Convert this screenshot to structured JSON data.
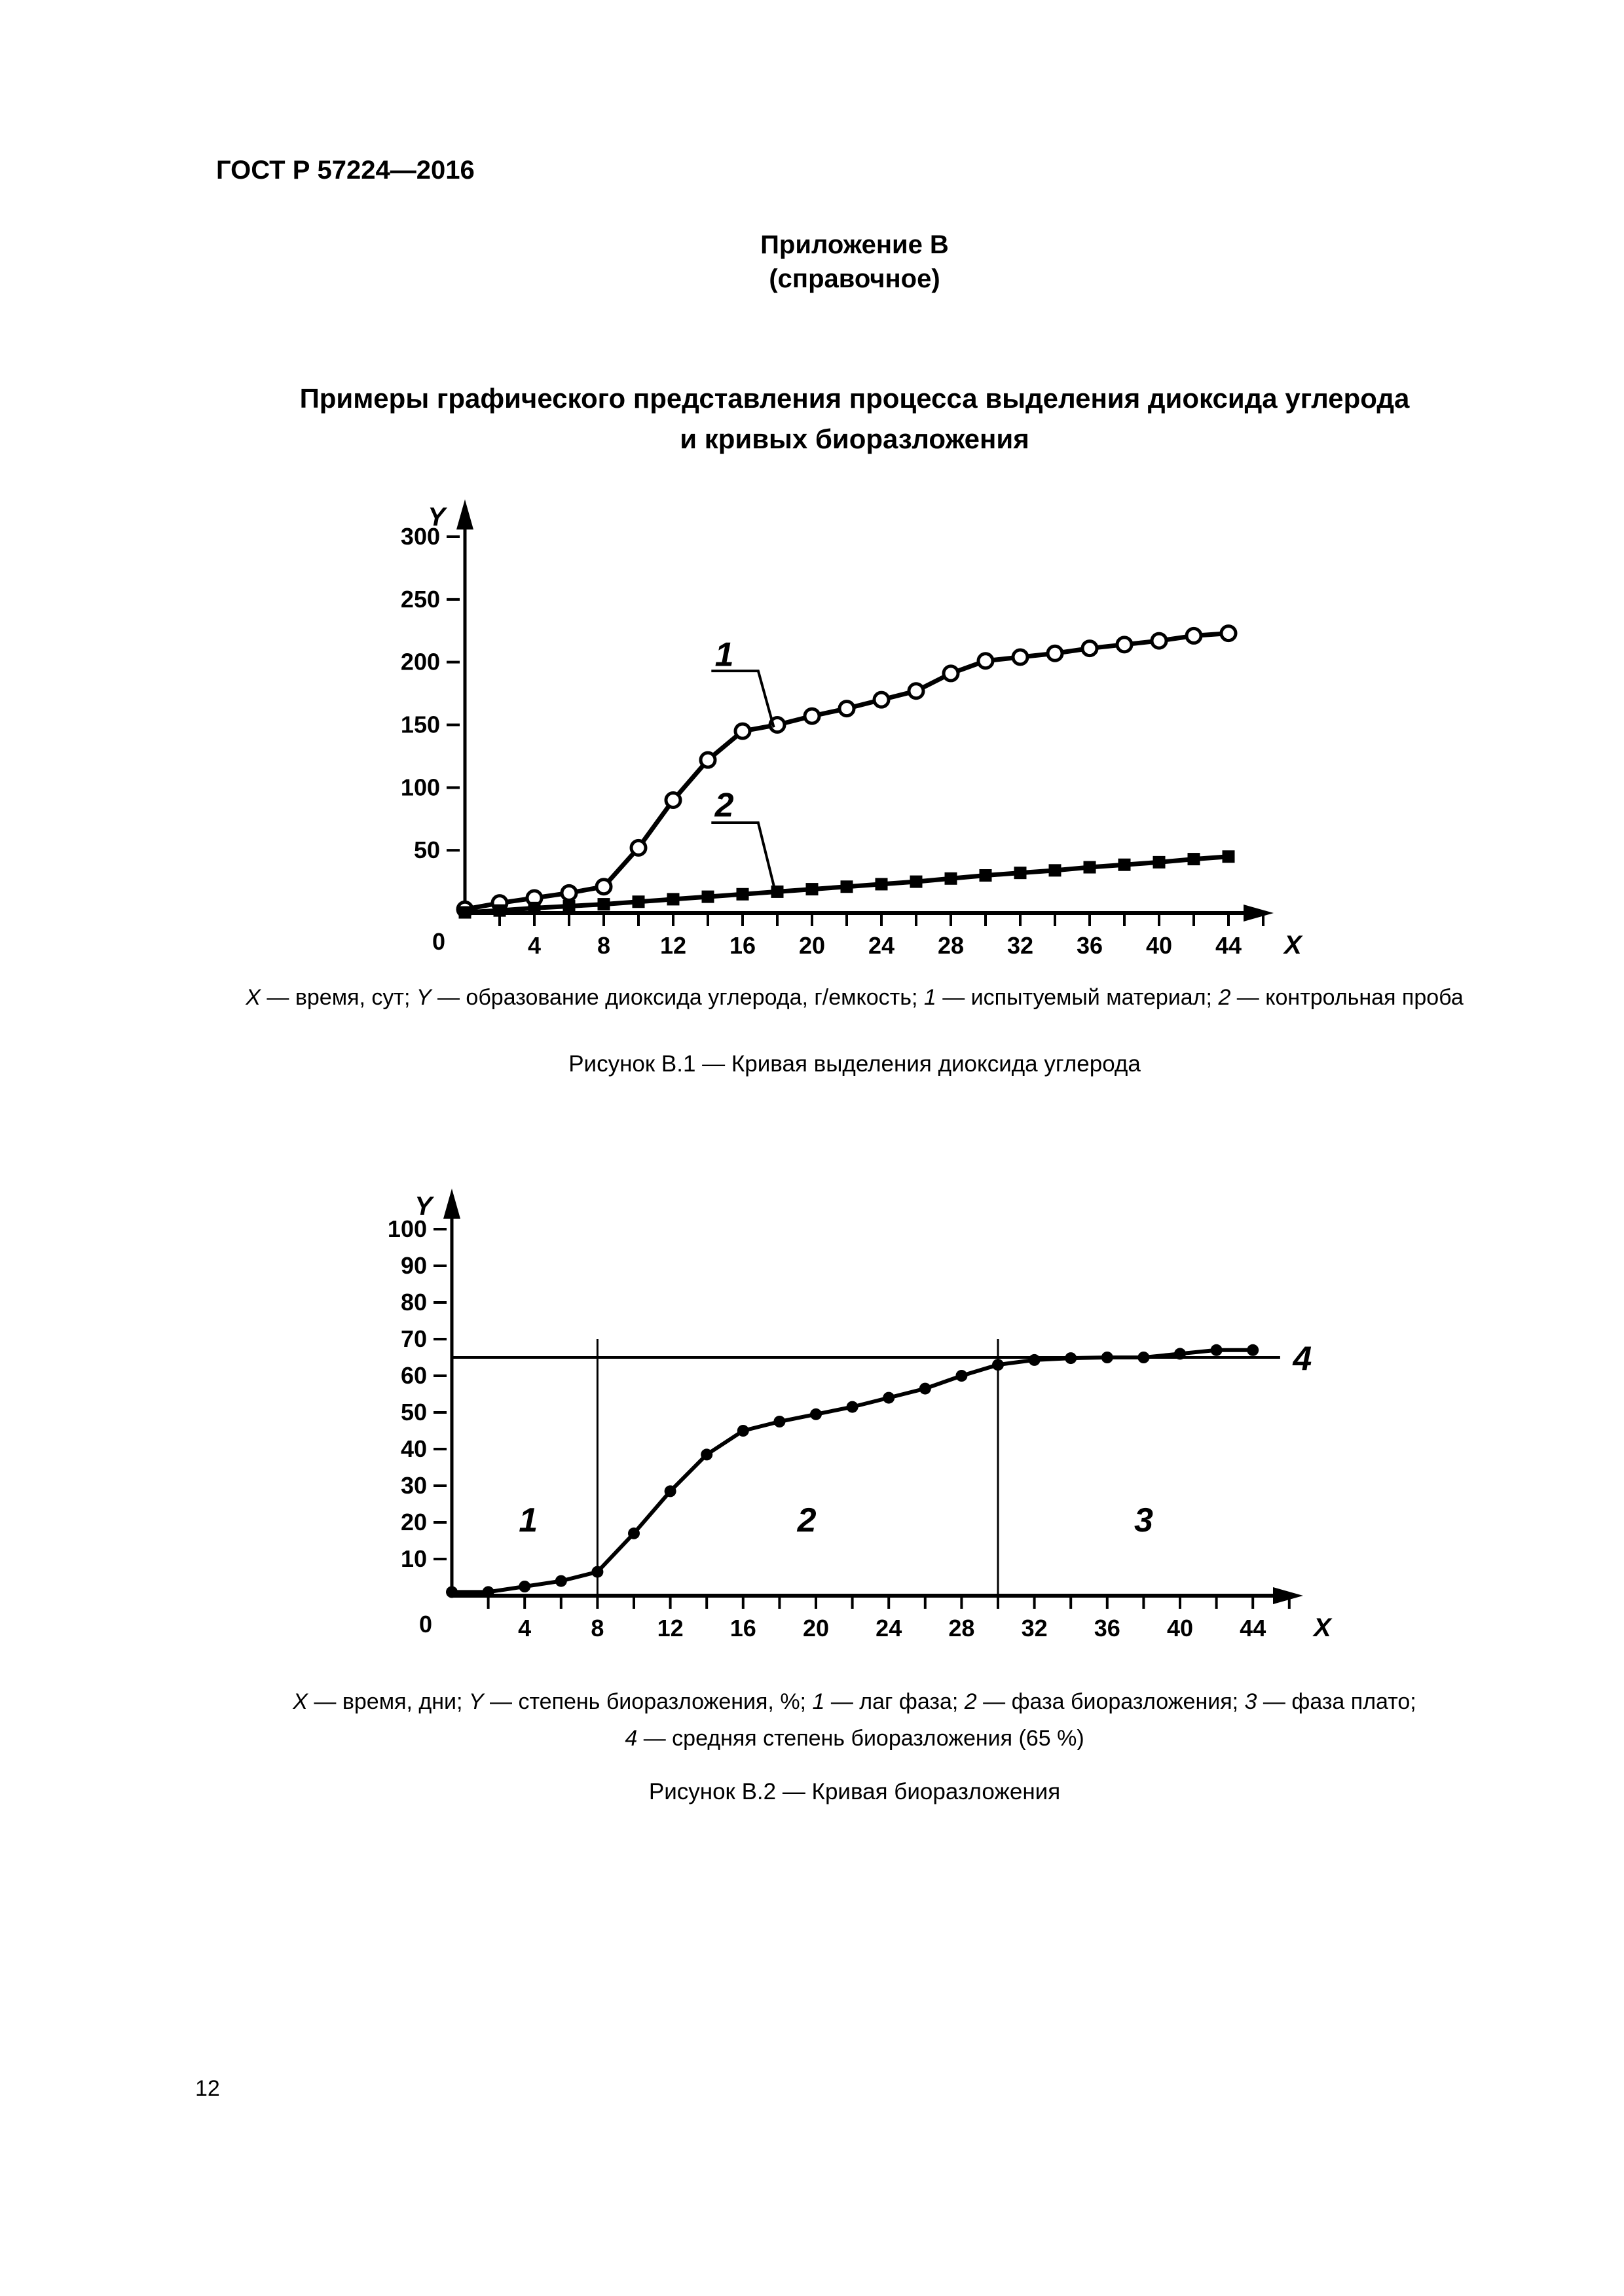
{
  "header": {
    "doc_code": "ГОСТ Р 57224—2016"
  },
  "appendix": {
    "line1": "Приложение В",
    "line2": "(справочное)"
  },
  "title": {
    "line1": "Примеры графического представления процесса выделения диоксида углерода",
    "line2": "и кривых биоразложения"
  },
  "figure1": {
    "caption_segments": [
      {
        "t": "X",
        "i": 1
      },
      {
        "t": " — время, сут; ",
        "i": 0
      },
      {
        "t": "Y",
        "i": 1
      },
      {
        "t": " — образование диоксида углерода, г/емкость; ",
        "i": 0
      },
      {
        "t": "1",
        "i": 1
      },
      {
        "t": " — испытуемый материал; ",
        "i": 0
      },
      {
        "t": "2",
        "i": 1
      },
      {
        "t": " — контрольная проба",
        "i": 0
      }
    ],
    "figure_label": "Рисунок В.1 — Кривая выделения диоксида углерода"
  },
  "figure2": {
    "caption_line1_segments": [
      {
        "t": "X",
        "i": 1
      },
      {
        "t": " — время, дни; ",
        "i": 0
      },
      {
        "t": "Y",
        "i": 1
      },
      {
        "t": " — степень биоразложения, %; ",
        "i": 0
      },
      {
        "t": "1",
        "i": 1
      },
      {
        "t": " — лаг фаза; ",
        "i": 0
      },
      {
        "t": "2",
        "i": 1
      },
      {
        "t": " — фаза биоразложения; ",
        "i": 0
      },
      {
        "t": "3",
        "i": 1
      },
      {
        "t": " — фаза плато;",
        "i": 0
      }
    ],
    "caption_line2_segments": [
      {
        "t": "4",
        "i": 1
      },
      {
        "t": " — средняя степень биоразложения (65 %)",
        "i": 0
      }
    ],
    "figure_label": "Рисунок В.2 — Кривая биоразложения"
  },
  "page": {
    "number": "12"
  },
  "colors": {
    "ink": "#000000",
    "paper": "#ffffff"
  },
  "chart_data": [
    {
      "type": "line",
      "title": "Кривая выделения диоксида углерода",
      "xlabel": "X",
      "ylabel": "Y",
      "origin_label": "0",
      "x_unit": "время, сут",
      "y_unit": "образование диоксида углерода, г/емкость",
      "xlim": [
        0,
        46
      ],
      "ylim": [
        0,
        320
      ],
      "x_tick_labels": [
        4,
        8,
        12,
        16,
        20,
        24,
        28,
        32,
        36,
        40,
        44
      ],
      "y_tick_labels": [
        50,
        100,
        150,
        200,
        250,
        300
      ],
      "x": [
        0,
        2,
        4,
        6,
        8,
        10,
        12,
        14,
        16,
        18,
        20,
        22,
        24,
        26,
        28,
        30,
        32,
        34,
        36,
        38,
        40,
        42,
        44
      ],
      "series": [
        {
          "id": "1",
          "name": "испытуемый материал",
          "marker": "circle-open",
          "values": [
            3,
            8,
            12,
            16,
            21,
            52,
            90,
            122,
            145,
            150,
            157,
            163,
            170,
            177,
            191,
            201,
            204,
            207,
            211,
            214,
            217,
            221,
            223
          ]
        },
        {
          "id": "2",
          "name": "контрольная проба",
          "marker": "square-filled",
          "values": [
            0.5,
            2,
            4,
            5.5,
            7,
            9,
            11,
            13,
            15,
            17,
            19,
            21,
            23,
            25,
            27.5,
            30,
            32,
            34,
            36.5,
            38.5,
            40.5,
            43,
            45
          ]
        }
      ],
      "callouts": [
        {
          "label": "1",
          "label_x": 14.4,
          "label_y": 197,
          "leader": [
            [
              14.2,
              193
            ],
            [
              16.9,
              193
            ],
            [
              17.8,
              148
            ]
          ]
        },
        {
          "label": "2",
          "label_x": 14.4,
          "label_y": 77,
          "leader": [
            [
              14.2,
              72
            ],
            [
              16.9,
              72
            ],
            [
              17.85,
              19
            ]
          ]
        }
      ],
      "ref_lines": [],
      "region_labels": [],
      "end_label": null,
      "grid": false,
      "legend_position": "none"
    },
    {
      "type": "line",
      "title": "Кривая биоразложения",
      "xlabel": "X",
      "ylabel": "Y",
      "origin_label": "0",
      "x_unit": "время, дни",
      "y_unit": "степень биоразложения, %",
      "xlim": [
        0,
        46
      ],
      "ylim": [
        0,
        105
      ],
      "x_tick_labels": [
        4,
        8,
        12,
        16,
        20,
        24,
        28,
        32,
        36,
        40,
        44
      ],
      "y_tick_labels": [
        10,
        20,
        30,
        40,
        50,
        60,
        70,
        80,
        90,
        100
      ],
      "x": [
        0,
        2,
        4,
        6,
        8,
        10,
        12,
        14,
        16,
        18,
        20,
        22,
        24,
        26,
        28,
        30,
        32,
        34,
        36,
        38,
        40,
        42,
        44
      ],
      "series": [
        {
          "id": "biodegradation-curve",
          "name": "кривая биоразложения",
          "marker": "dot",
          "values": [
            1,
            1,
            2.5,
            4,
            6.5,
            17,
            28.5,
            38.5,
            45,
            47.5,
            49.5,
            51.5,
            54,
            56.5,
            60,
            63,
            64.3,
            64.8,
            65,
            65,
            66,
            67,
            67
          ]
        }
      ],
      "callouts": [],
      "ref_lines": [
        {
          "o": "h",
          "at": 65,
          "from": 0,
          "to": 45.5
        },
        {
          "o": "v",
          "at": 8,
          "from": 0,
          "to": 70
        },
        {
          "o": "v",
          "at": 30,
          "from": 0,
          "to": 70
        }
      ],
      "region_labels": [
        {
          "label": "1",
          "x": 4.2,
          "y": 17.5
        },
        {
          "label": "2",
          "x": 19.5,
          "y": 17.5
        },
        {
          "label": "3",
          "x": 38,
          "y": 17.5
        }
      ],
      "end_label": {
        "label": "4",
        "x": 46.2,
        "y": 61.5
      },
      "grid": false,
      "legend_position": "none"
    }
  ]
}
